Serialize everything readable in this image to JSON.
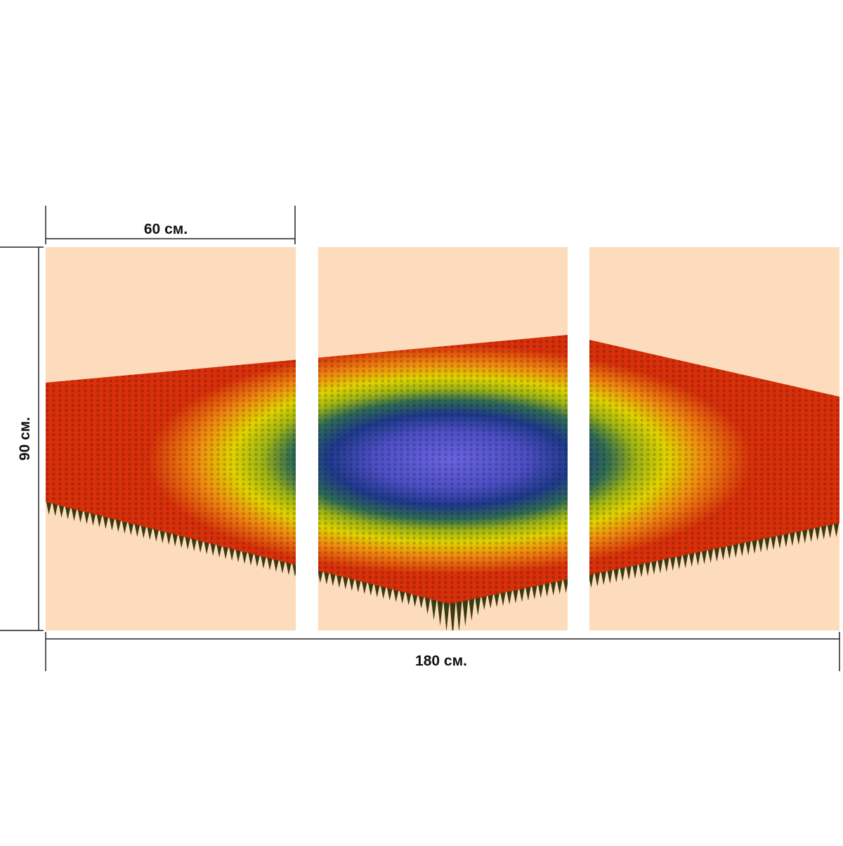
{
  "dimensions": {
    "panel_width": "60 см.",
    "height": "90 см.",
    "total_width": "180 см."
  }
}
